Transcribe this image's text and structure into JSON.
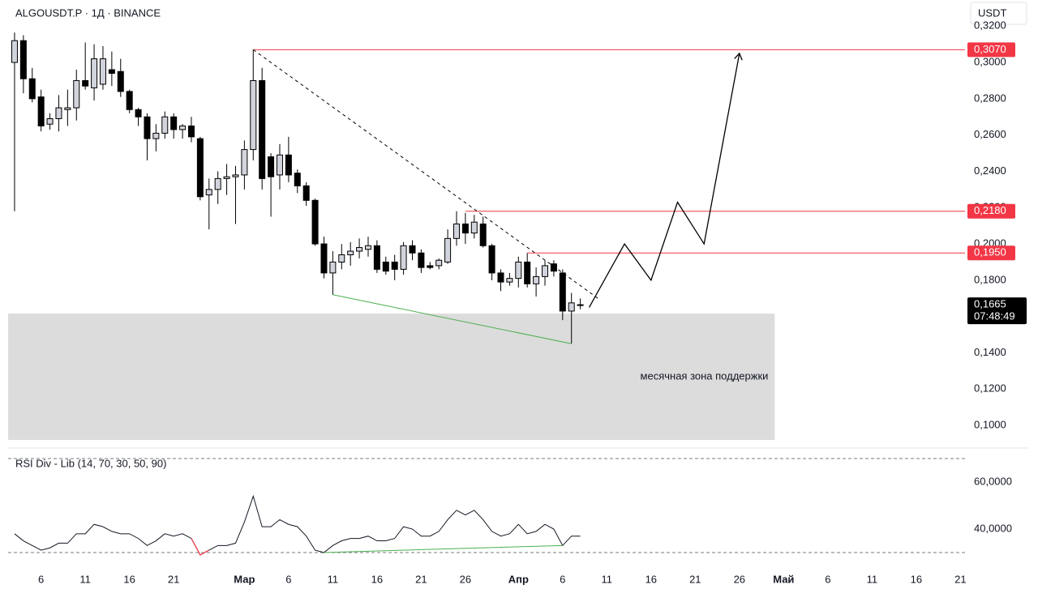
{
  "chart_data": [
    {
      "type": "candlestick",
      "title": "ALGOUSDT.P · 1Д · BINANCE",
      "currency": "USDT",
      "x": [
        0,
        1,
        2,
        3,
        4,
        5,
        6,
        7,
        8,
        9,
        10,
        11,
        12,
        13,
        14,
        15,
        16,
        17,
        18,
        19,
        20,
        21,
        22,
        23,
        24,
        25,
        26,
        27,
        28,
        29,
        30,
        31,
        32,
        33,
        34,
        35,
        36,
        37,
        38,
        39,
        40,
        41,
        42,
        43,
        44,
        45,
        46,
        47,
        48,
        49,
        50,
        51,
        52,
        53,
        54,
        55,
        56,
        57,
        58,
        59,
        60,
        61,
        62,
        63,
        64
      ],
      "open": [
        0.3,
        0.312,
        0.291,
        0.281,
        0.266,
        0.269,
        0.274,
        0.275,
        0.29,
        0.286,
        0.288,
        0.296,
        0.295,
        0.284,
        0.274,
        0.27,
        0.258,
        0.261,
        0.27,
        0.263,
        0.265,
        0.258,
        0.227,
        0.23,
        0.236,
        0.237,
        0.238,
        0.252,
        0.29,
        0.248,
        0.238,
        0.249,
        0.239,
        0.232,
        0.224,
        0.2,
        0.184,
        0.19,
        0.194,
        0.196,
        0.197,
        0.199,
        0.19,
        0.19,
        0.186,
        0.199,
        0.195,
        0.188,
        0.188,
        0.19,
        0.203,
        0.211,
        0.206,
        0.211,
        0.199,
        0.184,
        0.179,
        0.181,
        0.19,
        0.178,
        0.182,
        0.189,
        0.184,
        0.163,
        0.1663
      ],
      "high": [
        0.3165,
        0.315,
        0.297,
        0.285,
        0.272,
        0.282,
        0.285,
        0.296,
        0.311,
        0.31,
        0.309,
        0.306,
        0.302,
        0.285,
        0.275,
        0.272,
        0.266,
        0.273,
        0.272,
        0.266,
        0.27,
        0.259,
        0.236,
        0.24,
        0.244,
        0.243,
        0.257,
        0.307,
        0.297,
        0.25,
        0.255,
        0.259,
        0.241,
        0.234,
        0.225,
        0.204,
        0.196,
        0.2,
        0.201,
        0.203,
        0.204,
        0.202,
        0.193,
        0.194,
        0.201,
        0.202,
        0.197,
        0.19,
        0.192,
        0.208,
        0.218,
        0.217,
        0.216,
        0.215,
        0.2,
        0.186,
        0.184,
        0.193,
        0.195,
        0.187,
        0.191,
        0.191,
        0.186,
        0.173,
        0.17
      ],
      "low": [
        0.218,
        0.283,
        0.278,
        0.262,
        0.263,
        0.262,
        0.265,
        0.268,
        0.285,
        0.279,
        0.285,
        0.287,
        0.281,
        0.272,
        0.265,
        0.246,
        0.251,
        0.258,
        0.258,
        0.258,
        0.256,
        0.224,
        0.208,
        0.222,
        0.227,
        0.211,
        0.23,
        0.246,
        0.23,
        0.215,
        0.23,
        0.234,
        0.228,
        0.221,
        0.199,
        0.181,
        0.172,
        0.186,
        0.188,
        0.192,
        0.193,
        0.184,
        0.183,
        0.18,
        0.183,
        0.191,
        0.184,
        0.186,
        0.186,
        0.189,
        0.199,
        0.2,
        0.203,
        0.198,
        0.18,
        0.174,
        0.177,
        0.176,
        0.176,
        0.171,
        0.177,
        0.182,
        0.158,
        0.145,
        0.164
      ],
      "close": [
        0.312,
        0.291,
        0.28,
        0.265,
        0.269,
        0.275,
        0.275,
        0.29,
        0.287,
        0.302,
        0.302,
        0.294,
        0.284,
        0.274,
        0.27,
        0.258,
        0.261,
        0.27,
        0.263,
        0.265,
        0.259,
        0.226,
        0.23,
        0.236,
        0.237,
        0.238,
        0.252,
        0.29,
        0.236,
        0.237,
        0.249,
        0.238,
        0.232,
        0.224,
        0.2,
        0.184,
        0.19,
        0.194,
        0.196,
        0.198,
        0.199,
        0.186,
        0.185,
        0.186,
        0.199,
        0.195,
        0.187,
        0.187,
        0.191,
        0.203,
        0.211,
        0.206,
        0.212,
        0.199,
        0.184,
        0.179,
        0.181,
        0.19,
        0.178,
        0.182,
        0.188,
        0.185,
        0.163,
        0.1675,
        0.1665
      ],
      "up_color": "#d1d4dc",
      "down_color": "#000000",
      "xlim": [
        -0.73,
        107.52
      ],
      "ylim": [
        0.0911,
        0.3344
      ],
      "yticks": [
        {
          "value": 0.32,
          "label": "0,3200"
        },
        {
          "value": 0.3,
          "label": "0,3000"
        },
        {
          "value": 0.28,
          "label": "0,2800"
        },
        {
          "value": 0.26,
          "label": "0,2600"
        },
        {
          "value": 0.24,
          "label": "0,2400"
        },
        {
          "value": 0.22,
          "label": "0,2200"
        },
        {
          "value": 0.2,
          "label": "0,2000"
        },
        {
          "value": 0.18,
          "label": "0,1800"
        },
        {
          "value": 0.14,
          "label": "0,1400"
        },
        {
          "value": 0.12,
          "label": "0,1200"
        },
        {
          "value": 0.1,
          "label": "0,1000"
        }
      ],
      "levels": [
        {
          "value": 0.307,
          "label": "0,3070",
          "from": 27
        },
        {
          "value": 0.218,
          "label": "0,2180",
          "from": 51
        },
        {
          "value": 0.195,
          "label": "0,1950",
          "from": 58
        }
      ],
      "level_color": "#f23645",
      "last": {
        "value": 0.1665,
        "label": "0,1665",
        "timer": "07:48:49"
      },
      "trendline": {
        "x": [
          27,
          66
        ],
        "y": [
          0.307,
          0.17
        ]
      },
      "support_line": {
        "x": [
          36,
          63
        ],
        "y": [
          0.172,
          0.145
        ],
        "color": "#4caf50"
      },
      "projection": {
        "x": [
          65,
          69,
          72,
          75,
          78,
          82
        ],
        "y": [
          0.165,
          0.2,
          0.18,
          0.223,
          0.2,
          0.305
        ]
      },
      "zone": {
        "label": "месячная зона поддержки",
        "to": 86,
        "low": 0.092,
        "high": 0.1616
      }
    },
    {
      "type": "line",
      "title": "RSI Div - Lib (14, 70, 30, 50, 90)",
      "x": [
        0,
        1,
        2,
        3,
        4,
        5,
        6,
        7,
        8,
        9,
        10,
        11,
        12,
        13,
        14,
        15,
        16,
        17,
        18,
        19,
        20,
        21,
        22,
        23,
        24,
        25,
        26,
        27,
        28,
        29,
        30,
        31,
        32,
        33,
        34,
        35,
        36,
        37,
        38,
        39,
        40,
        41,
        42,
        43,
        44,
        45,
        46,
        47,
        48,
        49,
        50,
        51,
        52,
        53,
        54,
        55,
        56,
        57,
        58,
        59,
        60,
        61,
        62,
        63,
        64
      ],
      "values": [
        38,
        35,
        33,
        31,
        32,
        34,
        34,
        38,
        38,
        42,
        41,
        39,
        38,
        38,
        36,
        33,
        35,
        38,
        37,
        38,
        36,
        29,
        31,
        33,
        33,
        34,
        43,
        54,
        41,
        41,
        44,
        42,
        41,
        37,
        31,
        30,
        33,
        35,
        36,
        36,
        37,
        35,
        35,
        36,
        41,
        40,
        37,
        37,
        39,
        44,
        48,
        46,
        48,
        44,
        39,
        37,
        38,
        42,
        38,
        39,
        42,
        40,
        33,
        37,
        37
      ],
      "color": "#131722",
      "highlight": {
        "from": 20,
        "to": 22,
        "color": "#f23645"
      },
      "divergence": {
        "x": [
          35,
          62
        ],
        "y": [
          30,
          33
        ],
        "color": "#4caf50"
      },
      "bands": [
        70,
        30
      ],
      "xlim": [
        -0.73,
        107.52
      ],
      "ylim": [
        23.8,
        73.8
      ],
      "yticks": [
        {
          "value": 60,
          "label": "60,0000"
        },
        {
          "value": 40,
          "label": "40,0000"
        }
      ],
      "xticks": [
        {
          "value": 3,
          "label": "6"
        },
        {
          "value": 8,
          "label": "11"
        },
        {
          "value": 13,
          "label": "16"
        },
        {
          "value": 18,
          "label": "21"
        },
        {
          "value": 26,
          "label": "Мар"
        },
        {
          "value": 31,
          "label": "6"
        },
        {
          "value": 36,
          "label": "11"
        },
        {
          "value": 41,
          "label": "16"
        },
        {
          "value": 46,
          "label": "21"
        },
        {
          "value": 51,
          "label": "26"
        },
        {
          "value": 57,
          "label": "Апр"
        },
        {
          "value": 62,
          "label": "6"
        },
        {
          "value": 67,
          "label": "11"
        },
        {
          "value": 72,
          "label": "16"
        },
        {
          "value": 77,
          "label": "21"
        },
        {
          "value": 82,
          "label": "26"
        },
        {
          "value": 87,
          "label": "Май"
        },
        {
          "value": 92,
          "label": "6"
        },
        {
          "value": 97,
          "label": "11"
        },
        {
          "value": 102,
          "label": "16"
        },
        {
          "value": 107,
          "label": "21"
        }
      ]
    }
  ]
}
